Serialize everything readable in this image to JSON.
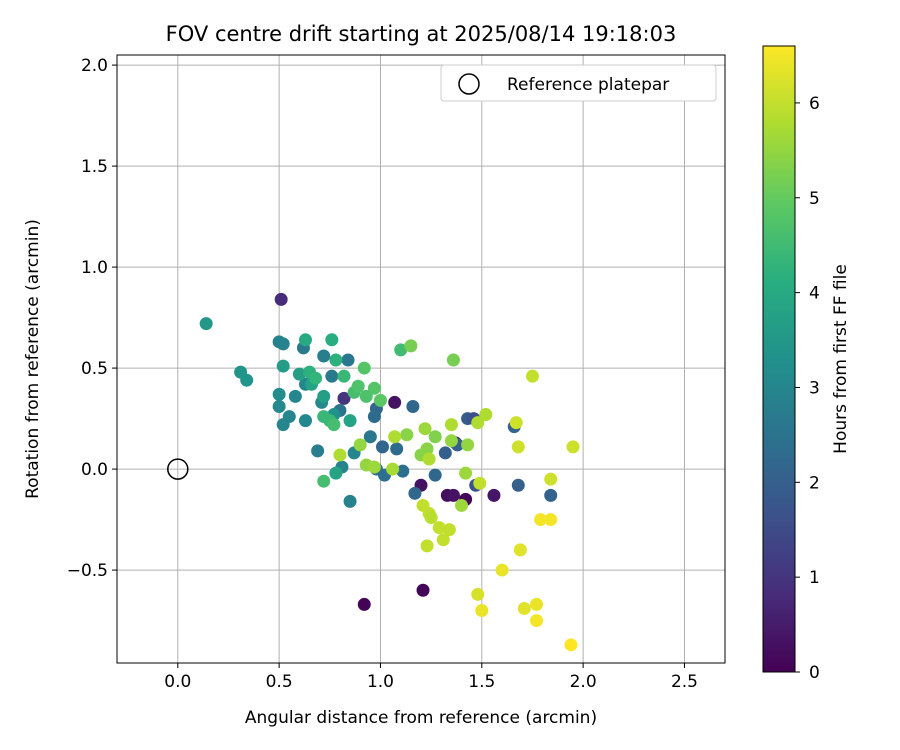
{
  "chart_data": {
    "type": "scatter",
    "title": "FOV centre drift starting at 2025/08/14 19:18:03",
    "xlabel": "Angular distance from reference (arcmin)",
    "ylabel": "Rotation from reference (arcmin)",
    "xlim": [
      -0.3,
      2.7
    ],
    "ylim": [
      -0.96,
      2.05
    ],
    "xticks": [
      "0.0",
      "0.5",
      "1.0",
      "1.5",
      "2.0",
      "2.5"
    ],
    "xtick_values": [
      0,
      0.5,
      1.0,
      1.5,
      2.0,
      2.5
    ],
    "yticks": [
      "−0.5",
      "0.0",
      "0.5",
      "1.0",
      "1.5",
      "2.0"
    ],
    "ytick_values": [
      -0.5,
      0,
      0.5,
      1.0,
      1.5,
      2.0
    ],
    "grid": true,
    "legend": {
      "placement": "top-right",
      "entries": [
        {
          "label": "Reference platepar",
          "marker": "open-circle"
        }
      ]
    },
    "reference_point": {
      "x": 0.0,
      "y": 0.0
    },
    "colormap": "viridis",
    "colorbar": {
      "label": "Hours from first FF file",
      "range": [
        0,
        6.6
      ],
      "ticks": [
        "0",
        "1",
        "2",
        "3",
        "4",
        "5",
        "6"
      ],
      "tick_values": [
        0,
        1,
        2,
        3,
        4,
        5,
        6
      ]
    },
    "points": [
      {
        "x": 0.51,
        "y": 0.84,
        "c": 0.8
      },
      {
        "x": 0.92,
        "y": -0.67,
        "c": 0.05
      },
      {
        "x": 1.21,
        "y": -0.6,
        "c": 0.1
      },
      {
        "x": 1.07,
        "y": 0.33,
        "c": 0.3
      },
      {
        "x": 1.33,
        "y": -0.13,
        "c": 0.2
      },
      {
        "x": 1.36,
        "y": -0.13,
        "c": 0.3
      },
      {
        "x": 1.42,
        "y": -0.15,
        "c": 0.1
      },
      {
        "x": 1.56,
        "y": -0.13,
        "c": 0.4
      },
      {
        "x": 1.2,
        "y": -0.08,
        "c": 0.3
      },
      {
        "x": 1.37,
        "y": 0.13,
        "c": 0.4
      },
      {
        "x": 0.82,
        "y": 0.35,
        "c": 1.0
      },
      {
        "x": 1.17,
        "y": -0.12,
        "c": 2.2
      },
      {
        "x": 1.43,
        "y": 0.25,
        "c": 1.9
      },
      {
        "x": 1.46,
        "y": 0.25,
        "c": 1.6
      },
      {
        "x": 1.47,
        "y": -0.08,
        "c": 1.7
      },
      {
        "x": 1.68,
        "y": -0.08,
        "c": 2.0
      },
      {
        "x": 1.84,
        "y": -0.13,
        "c": 2.1
      },
      {
        "x": 1.66,
        "y": 0.21,
        "c": 2.1
      },
      {
        "x": 1.38,
        "y": 0.12,
        "c": 2.0
      },
      {
        "x": 1.32,
        "y": 0.08,
        "c": 2.0
      },
      {
        "x": 1.27,
        "y": -0.03,
        "c": 2.2
      },
      {
        "x": 1.11,
        "y": -0.01,
        "c": 2.4
      },
      {
        "x": 1.02,
        "y": -0.03,
        "c": 2.4
      },
      {
        "x": 0.98,
        "y": 0.0,
        "c": 2.3
      },
      {
        "x": 1.01,
        "y": 0.11,
        "c": 2.2
      },
      {
        "x": 1.08,
        "y": 0.1,
        "c": 2.3
      },
      {
        "x": 1.16,
        "y": 0.31,
        "c": 2.2
      },
      {
        "x": 0.98,
        "y": 0.3,
        "c": 2.2
      },
      {
        "x": 0.97,
        "y": 0.26,
        "c": 2.3
      },
      {
        "x": 0.95,
        "y": 0.16,
        "c": 2.6
      },
      {
        "x": 0.84,
        "y": 0.54,
        "c": 2.6
      },
      {
        "x": 0.8,
        "y": 0.29,
        "c": 2.5
      },
      {
        "x": 0.76,
        "y": 0.46,
        "c": 2.7
      },
      {
        "x": 0.72,
        "y": 0.56,
        "c": 2.8
      },
      {
        "x": 0.69,
        "y": 0.09,
        "c": 2.8
      },
      {
        "x": 0.62,
        "y": 0.6,
        "c": 2.7
      },
      {
        "x": 0.52,
        "y": 0.62,
        "c": 2.9
      },
      {
        "x": 0.5,
        "y": 0.63,
        "c": 2.9
      },
      {
        "x": 0.5,
        "y": 0.37,
        "c": 3.2
      },
      {
        "x": 0.5,
        "y": 0.31,
        "c": 3.1
      },
      {
        "x": 0.52,
        "y": 0.22,
        "c": 3.0
      },
      {
        "x": 0.55,
        "y": 0.26,
        "c": 3.0
      },
      {
        "x": 0.58,
        "y": 0.36,
        "c": 3.0
      },
      {
        "x": 0.63,
        "y": 0.24,
        "c": 3.0
      },
      {
        "x": 0.63,
        "y": 0.42,
        "c": 3.0
      },
      {
        "x": 0.81,
        "y": 0.01,
        "c": 2.9
      },
      {
        "x": 0.85,
        "y": -0.16,
        "c": 2.9
      },
      {
        "x": 0.87,
        "y": 0.08,
        "c": 3.0
      },
      {
        "x": 0.71,
        "y": 0.33,
        "c": 3.1
      },
      {
        "x": 0.77,
        "y": 0.27,
        "c": 3.3
      },
      {
        "x": 0.31,
        "y": 0.48,
        "c": 3.4
      },
      {
        "x": 0.34,
        "y": 0.44,
        "c": 3.4
      },
      {
        "x": 0.14,
        "y": 0.72,
        "c": 3.5
      },
      {
        "x": 0.52,
        "y": 0.51,
        "c": 3.6
      },
      {
        "x": 0.6,
        "y": 0.47,
        "c": 3.7
      },
      {
        "x": 0.66,
        "y": 0.42,
        "c": 3.8
      },
      {
        "x": 0.72,
        "y": 0.36,
        "c": 3.7
      },
      {
        "x": 0.78,
        "y": -0.02,
        "c": 3.8
      },
      {
        "x": 0.85,
        "y": 0.24,
        "c": 3.8
      },
      {
        "x": 0.63,
        "y": 0.64,
        "c": 4.0
      },
      {
        "x": 0.76,
        "y": 0.64,
        "c": 4.1
      },
      {
        "x": 0.78,
        "y": 0.54,
        "c": 4.2
      },
      {
        "x": 0.65,
        "y": 0.48,
        "c": 4.2
      },
      {
        "x": 0.68,
        "y": 0.45,
        "c": 4.3
      },
      {
        "x": 0.82,
        "y": 0.46,
        "c": 4.4
      },
      {
        "x": 0.72,
        "y": 0.26,
        "c": 4.4
      },
      {
        "x": 0.75,
        "y": 0.24,
        "c": 4.4
      },
      {
        "x": 0.77,
        "y": 0.22,
        "c": 4.6
      },
      {
        "x": 0.72,
        "y": -0.06,
        "c": 4.6
      },
      {
        "x": 0.87,
        "y": 0.38,
        "c": 4.6
      },
      {
        "x": 0.89,
        "y": 0.41,
        "c": 4.7
      },
      {
        "x": 0.93,
        "y": 0.36,
        "c": 4.7
      },
      {
        "x": 0.97,
        "y": 0.4,
        "c": 4.8
      },
      {
        "x": 0.92,
        "y": 0.5,
        "c": 4.8
      },
      {
        "x": 1.0,
        "y": 0.34,
        "c": 4.9
      },
      {
        "x": 1.1,
        "y": 0.59,
        "c": 4.5
      },
      {
        "x": 1.15,
        "y": 0.61,
        "c": 5.2
      },
      {
        "x": 1.36,
        "y": 0.54,
        "c": 5.2
      },
      {
        "x": 1.13,
        "y": 0.17,
        "c": 5.4
      },
      {
        "x": 1.2,
        "y": 0.07,
        "c": 5.4
      },
      {
        "x": 1.23,
        "y": 0.1,
        "c": 5.4
      },
      {
        "x": 1.27,
        "y": 0.16,
        "c": 5.3
      },
      {
        "x": 1.35,
        "y": 0.14,
        "c": 5.5
      },
      {
        "x": 1.43,
        "y": 0.12,
        "c": 5.5
      },
      {
        "x": 1.42,
        "y": -0.02,
        "c": 5.6
      },
      {
        "x": 1.4,
        "y": -0.18,
        "c": 5.6
      },
      {
        "x": 1.22,
        "y": 0.2,
        "c": 5.6
      },
      {
        "x": 0.9,
        "y": 0.12,
        "c": 5.5
      },
      {
        "x": 0.93,
        "y": 0.02,
        "c": 5.5
      },
      {
        "x": 0.97,
        "y": 0.01,
        "c": 5.6
      },
      {
        "x": 1.06,
        "y": 0.0,
        "c": 5.7
      },
      {
        "x": 0.8,
        "y": 0.07,
        "c": 5.8
      },
      {
        "x": 1.07,
        "y": 0.16,
        "c": 5.8
      },
      {
        "x": 1.35,
        "y": 0.22,
        "c": 5.8
      },
      {
        "x": 1.48,
        "y": 0.23,
        "c": 5.8
      },
      {
        "x": 1.52,
        "y": 0.27,
        "c": 5.8
      },
      {
        "x": 1.24,
        "y": 0.05,
        "c": 5.8
      },
      {
        "x": 1.21,
        "y": -0.18,
        "c": 6.0
      },
      {
        "x": 1.24,
        "y": -0.22,
        "c": 6.0
      },
      {
        "x": 1.25,
        "y": -0.24,
        "c": 5.9
      },
      {
        "x": 1.29,
        "y": -0.29,
        "c": 6.0
      },
      {
        "x": 1.34,
        "y": -0.3,
        "c": 6.0
      },
      {
        "x": 1.31,
        "y": -0.35,
        "c": 6.0
      },
      {
        "x": 1.23,
        "y": -0.38,
        "c": 6.0
      },
      {
        "x": 1.49,
        "y": -0.07,
        "c": 6.0
      },
      {
        "x": 1.67,
        "y": 0.23,
        "c": 6.1
      },
      {
        "x": 1.68,
        "y": 0.11,
        "c": 6.1
      },
      {
        "x": 1.75,
        "y": 0.46,
        "c": 6.0
      },
      {
        "x": 1.95,
        "y": 0.11,
        "c": 6.1
      },
      {
        "x": 1.84,
        "y": -0.05,
        "c": 6.1
      },
      {
        "x": 1.69,
        "y": -0.4,
        "c": 6.3
      },
      {
        "x": 1.48,
        "y": -0.62,
        "c": 6.2
      },
      {
        "x": 1.5,
        "y": -0.7,
        "c": 6.4
      },
      {
        "x": 1.6,
        "y": -0.5,
        "c": 6.4
      },
      {
        "x": 1.71,
        "y": -0.69,
        "c": 6.3
      },
      {
        "x": 1.77,
        "y": -0.67,
        "c": 6.4
      },
      {
        "x": 1.77,
        "y": -0.75,
        "c": 6.5
      },
      {
        "x": 1.79,
        "y": -0.25,
        "c": 6.5
      },
      {
        "x": 1.84,
        "y": -0.25,
        "c": 6.5
      },
      {
        "x": 1.94,
        "y": -0.87,
        "c": 6.6
      }
    ]
  }
}
